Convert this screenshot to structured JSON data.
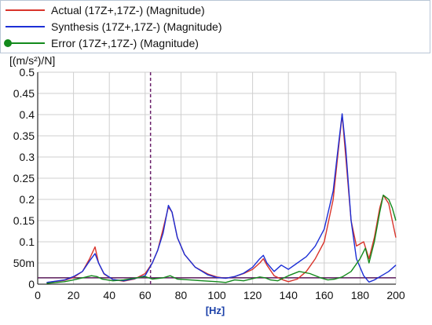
{
  "legend": [
    {
      "label": "Actual (17Z+,17Z-) (Magnitude)",
      "color": "#d9342b",
      "marker": false
    },
    {
      "label": "Synthesis (17Z+,17Z-) (Magnitude)",
      "color": "#1c2fd6",
      "marker": false
    },
    {
      "label": "Error (17Z+,17Z-) (Magnitude)",
      "color": "#138a1c",
      "marker": true
    }
  ],
  "chart_data": {
    "type": "line",
    "xlabel": "[Hz]",
    "ylabel": "[(m/s²)/N]",
    "xlim": [
      0,
      200
    ],
    "ylim": [
      0,
      0.5
    ],
    "x_ticks": [
      0,
      20,
      40,
      60,
      80,
      100,
      120,
      140,
      160,
      180,
      200
    ],
    "y_ticks": [
      {
        "v": 0,
        "label": "0"
      },
      {
        "v": 0.05,
        "label": "50m"
      },
      {
        "v": 0.1,
        "label": "0.1"
      },
      {
        "v": 0.15,
        "label": "0.15"
      },
      {
        "v": 0.2,
        "label": "0.2"
      },
      {
        "v": 0.25,
        "label": "0.25"
      },
      {
        "v": 0.3,
        "label": "0.3"
      },
      {
        "v": 0.35,
        "label": "0.35"
      },
      {
        "v": 0.4,
        "label": "0.4"
      },
      {
        "v": 0.45,
        "label": "0.45"
      },
      {
        "v": 0.5,
        "label": "0.5"
      }
    ],
    "grid": true,
    "reference_lines": {
      "vertical_x": 63,
      "horizontal_y": 0.015
    },
    "series": [
      {
        "name": "Actual (17Z+,17Z-) (Magnitude)",
        "color": "#d9342b",
        "points": [
          [
            5,
            0.004
          ],
          [
            15,
            0.009
          ],
          [
            20,
            0.016
          ],
          [
            25,
            0.03
          ],
          [
            29,
            0.06
          ],
          [
            32,
            0.088
          ],
          [
            34,
            0.05
          ],
          [
            37,
            0.024
          ],
          [
            42,
            0.011
          ],
          [
            48,
            0.007
          ],
          [
            54,
            0.012
          ],
          [
            60,
            0.025
          ],
          [
            64,
            0.05
          ],
          [
            67,
            0.08
          ],
          [
            70,
            0.13
          ],
          [
            73,
            0.182
          ],
          [
            75,
            0.17
          ],
          [
            78,
            0.11
          ],
          [
            82,
            0.07
          ],
          [
            88,
            0.04
          ],
          [
            95,
            0.024
          ],
          [
            100,
            0.017
          ],
          [
            105,
            0.014
          ],
          [
            110,
            0.018
          ],
          [
            115,
            0.025
          ],
          [
            120,
            0.035
          ],
          [
            124,
            0.05
          ],
          [
            126,
            0.06
          ],
          [
            128,
            0.045
          ],
          [
            132,
            0.02
          ],
          [
            137,
            0.01
          ],
          [
            140,
            0.006
          ],
          [
            145,
            0.012
          ],
          [
            150,
            0.03
          ],
          [
            155,
            0.06
          ],
          [
            160,
            0.1
          ],
          [
            165,
            0.2
          ],
          [
            168,
            0.32
          ],
          [
            170,
            0.4
          ],
          [
            172,
            0.3
          ],
          [
            175,
            0.15
          ],
          [
            178,
            0.09
          ],
          [
            182,
            0.1
          ],
          [
            185,
            0.06
          ],
          [
            188,
            0.11
          ],
          [
            191,
            0.18
          ],
          [
            193,
            0.21
          ],
          [
            196,
            0.19
          ],
          [
            198,
            0.15
          ],
          [
            200,
            0.11
          ]
        ]
      },
      {
        "name": "Synthesis (17Z+,17Z-) (Magnitude)",
        "color": "#1c2fd6",
        "points": [
          [
            5,
            0.004
          ],
          [
            15,
            0.01
          ],
          [
            20,
            0.018
          ],
          [
            25,
            0.03
          ],
          [
            29,
            0.055
          ],
          [
            32,
            0.072
          ],
          [
            34,
            0.05
          ],
          [
            37,
            0.025
          ],
          [
            42,
            0.011
          ],
          [
            48,
            0.008
          ],
          [
            54,
            0.013
          ],
          [
            60,
            0.02
          ],
          [
            64,
            0.05
          ],
          [
            67,
            0.08
          ],
          [
            70,
            0.12
          ],
          [
            73,
            0.186
          ],
          [
            75,
            0.17
          ],
          [
            78,
            0.11
          ],
          [
            82,
            0.07
          ],
          [
            88,
            0.04
          ],
          [
            95,
            0.022
          ],
          [
            100,
            0.016
          ],
          [
            105,
            0.014
          ],
          [
            110,
            0.018
          ],
          [
            115,
            0.026
          ],
          [
            120,
            0.04
          ],
          [
            124,
            0.06
          ],
          [
            126,
            0.068
          ],
          [
            128,
            0.05
          ],
          [
            132,
            0.03
          ],
          [
            136,
            0.045
          ],
          [
            140,
            0.035
          ],
          [
            145,
            0.05
          ],
          [
            150,
            0.065
          ],
          [
            155,
            0.09
          ],
          [
            160,
            0.13
          ],
          [
            165,
            0.22
          ],
          [
            168,
            0.33
          ],
          [
            170,
            0.402
          ],
          [
            172,
            0.32
          ],
          [
            175,
            0.15
          ],
          [
            178,
            0.06
          ],
          [
            182,
            0.02
          ],
          [
            185,
            0.005
          ],
          [
            188,
            0.01
          ],
          [
            192,
            0.02
          ],
          [
            196,
            0.03
          ],
          [
            200,
            0.045
          ]
        ]
      },
      {
        "name": "Error (17Z+,17Z-) (Magnitude)",
        "color": "#138a1c",
        "points": [
          [
            5,
            0.002
          ],
          [
            15,
            0.006
          ],
          [
            20,
            0.01
          ],
          [
            25,
            0.015
          ],
          [
            30,
            0.02
          ],
          [
            33,
            0.018
          ],
          [
            36,
            0.012
          ],
          [
            42,
            0.008
          ],
          [
            48,
            0.01
          ],
          [
            54,
            0.014
          ],
          [
            60,
            0.018
          ],
          [
            64,
            0.012
          ],
          [
            70,
            0.015
          ],
          [
            74,
            0.02
          ],
          [
            78,
            0.012
          ],
          [
            85,
            0.01
          ],
          [
            92,
            0.008
          ],
          [
            100,
            0.006
          ],
          [
            105,
            0.004
          ],
          [
            110,
            0.01
          ],
          [
            115,
            0.008
          ],
          [
            120,
            0.013
          ],
          [
            124,
            0.017
          ],
          [
            127,
            0.015
          ],
          [
            130,
            0.01
          ],
          [
            134,
            0.008
          ],
          [
            140,
            0.02
          ],
          [
            146,
            0.03
          ],
          [
            152,
            0.025
          ],
          [
            158,
            0.015
          ],
          [
            162,
            0.01
          ],
          [
            166,
            0.012
          ],
          [
            170,
            0.017
          ],
          [
            175,
            0.03
          ],
          [
            180,
            0.06
          ],
          [
            183,
            0.085
          ],
          [
            185,
            0.05
          ],
          [
            188,
            0.1
          ],
          [
            191,
            0.17
          ],
          [
            193,
            0.21
          ],
          [
            196,
            0.2
          ],
          [
            198,
            0.18
          ],
          [
            200,
            0.15
          ]
        ]
      }
    ]
  }
}
